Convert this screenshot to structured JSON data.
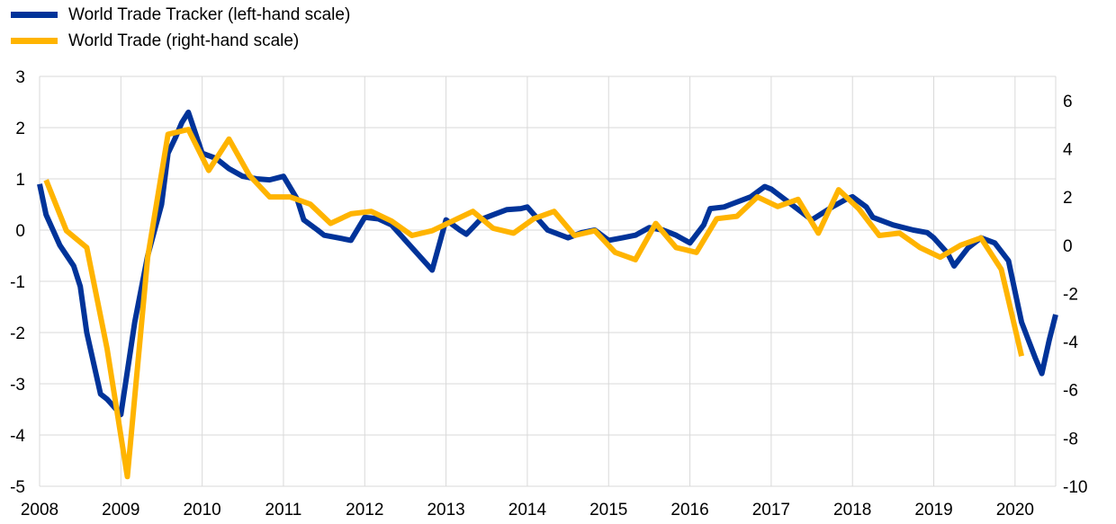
{
  "chart_data": {
    "type": "line",
    "title": "",
    "xlabel": "",
    "ylabel": "",
    "x_ticks": [
      "2008",
      "2009",
      "2010",
      "2011",
      "2012",
      "2013",
      "2014",
      "2015",
      "2016",
      "2017",
      "2018",
      "2019",
      "2020"
    ],
    "x_range": [
      2008.0,
      2020.5
    ],
    "y_left": {
      "range": [
        -5,
        3
      ],
      "ticks": [
        "3",
        "2",
        "1",
        "0",
        "-1",
        "-2",
        "-3",
        "-4",
        "-5"
      ]
    },
    "y_right": {
      "range": [
        -10,
        7
      ],
      "ticks": [
        "6",
        "4",
        "2",
        "0",
        "-2",
        "-4",
        "-6",
        "-8",
        "-10"
      ]
    },
    "grid": true,
    "legend_position": "top-left",
    "series": [
      {
        "name": "World Trade Tracker (left-hand scale)",
        "axis": "left",
        "color": "#003399",
        "points": [
          [
            2008.0,
            0.9
          ],
          [
            2008.08,
            0.3
          ],
          [
            2008.25,
            -0.3
          ],
          [
            2008.42,
            -0.7
          ],
          [
            2008.5,
            -1.1
          ],
          [
            2008.58,
            -2.0
          ],
          [
            2008.75,
            -3.2
          ],
          [
            2008.83,
            -3.3
          ],
          [
            2009.0,
            -3.6
          ],
          [
            2009.17,
            -1.8
          ],
          [
            2009.33,
            -0.5
          ],
          [
            2009.5,
            0.5
          ],
          [
            2009.58,
            1.5
          ],
          [
            2009.67,
            1.8
          ],
          [
            2009.75,
            2.1
          ],
          [
            2009.83,
            2.3
          ],
          [
            2010.0,
            1.5
          ],
          [
            2010.17,
            1.4
          ],
          [
            2010.33,
            1.2
          ],
          [
            2010.5,
            1.05
          ],
          [
            2010.67,
            1.0
          ],
          [
            2010.83,
            0.98
          ],
          [
            2011.0,
            1.05
          ],
          [
            2011.17,
            0.6
          ],
          [
            2011.25,
            0.2
          ],
          [
            2011.42,
            0.0
          ],
          [
            2011.5,
            -0.1
          ],
          [
            2011.67,
            -0.15
          ],
          [
            2011.83,
            -0.2
          ],
          [
            2012.0,
            0.25
          ],
          [
            2012.17,
            0.22
          ],
          [
            2012.33,
            0.1
          ],
          [
            2012.5,
            -0.2
          ],
          [
            2012.67,
            -0.5
          ],
          [
            2012.83,
            -0.78
          ],
          [
            2013.0,
            0.2
          ],
          [
            2013.17,
            0.0
          ],
          [
            2013.25,
            -0.08
          ],
          [
            2013.42,
            0.2
          ],
          [
            2013.58,
            0.3
          ],
          [
            2013.75,
            0.4
          ],
          [
            2013.92,
            0.42
          ],
          [
            2014.0,
            0.45
          ],
          [
            2014.25,
            0.0
          ],
          [
            2014.5,
            -0.15
          ],
          [
            2014.67,
            -0.05
          ],
          [
            2014.83,
            0.0
          ],
          [
            2015.0,
            -0.2
          ],
          [
            2015.17,
            -0.15
          ],
          [
            2015.33,
            -0.1
          ],
          [
            2015.5,
            0.05
          ],
          [
            2015.67,
            0.0
          ],
          [
            2015.83,
            -0.1
          ],
          [
            2016.0,
            -0.25
          ],
          [
            2016.17,
            0.1
          ],
          [
            2016.25,
            0.42
          ],
          [
            2016.42,
            0.45
          ],
          [
            2016.5,
            0.5
          ],
          [
            2016.75,
            0.65
          ],
          [
            2016.92,
            0.85
          ],
          [
            2017.0,
            0.8
          ],
          [
            2017.25,
            0.5
          ],
          [
            2017.5,
            0.2
          ],
          [
            2017.75,
            0.45
          ],
          [
            2017.92,
            0.6
          ],
          [
            2018.0,
            0.65
          ],
          [
            2018.17,
            0.45
          ],
          [
            2018.25,
            0.25
          ],
          [
            2018.5,
            0.1
          ],
          [
            2018.75,
            0.0
          ],
          [
            2018.92,
            -0.05
          ],
          [
            2019.0,
            -0.15
          ],
          [
            2019.17,
            -0.45
          ],
          [
            2019.25,
            -0.7
          ],
          [
            2019.42,
            -0.35
          ],
          [
            2019.58,
            -0.15
          ],
          [
            2019.75,
            -0.25
          ],
          [
            2019.92,
            -0.6
          ],
          [
            2020.0,
            -1.2
          ],
          [
            2020.08,
            -1.8
          ],
          [
            2020.25,
            -2.5
          ],
          [
            2020.33,
            -2.8
          ],
          [
            2020.42,
            -2.15
          ],
          [
            2020.5,
            -1.65
          ]
        ]
      },
      {
        "name": "World Trade (right-hand scale)",
        "axis": "right",
        "color": "#ffb400",
        "points": [
          [
            2008.08,
            2.7
          ],
          [
            2008.33,
            0.6
          ],
          [
            2008.58,
            -0.1
          ],
          [
            2008.83,
            -4.3
          ],
          [
            2009.08,
            -9.6
          ],
          [
            2009.33,
            -0.5
          ],
          [
            2009.58,
            4.6
          ],
          [
            2009.83,
            4.8
          ],
          [
            2010.08,
            3.1
          ],
          [
            2010.33,
            4.4
          ],
          [
            2010.58,
            2.9
          ],
          [
            2010.83,
            2.0
          ],
          [
            2011.08,
            2.0
          ],
          [
            2011.33,
            1.7
          ],
          [
            2011.58,
            0.9
          ],
          [
            2011.83,
            1.3
          ],
          [
            2012.08,
            1.4
          ],
          [
            2012.33,
            1.0
          ],
          [
            2012.58,
            0.4
          ],
          [
            2012.83,
            0.6
          ],
          [
            2013.08,
            1.0
          ],
          [
            2013.33,
            1.4
          ],
          [
            2013.58,
            0.7
          ],
          [
            2013.83,
            0.5
          ],
          [
            2014.08,
            1.1
          ],
          [
            2014.33,
            1.4
          ],
          [
            2014.58,
            0.4
          ],
          [
            2014.83,
            0.6
          ],
          [
            2015.08,
            -0.3
          ],
          [
            2015.33,
            -0.6
          ],
          [
            2015.58,
            0.9
          ],
          [
            2015.83,
            -0.1
          ],
          [
            2016.08,
            -0.3
          ],
          [
            2016.33,
            1.1
          ],
          [
            2016.58,
            1.2
          ],
          [
            2016.83,
            2.0
          ],
          [
            2017.08,
            1.6
          ],
          [
            2017.33,
            1.9
          ],
          [
            2017.58,
            0.5
          ],
          [
            2017.83,
            2.3
          ],
          [
            2018.08,
            1.5
          ],
          [
            2018.33,
            0.4
          ],
          [
            2018.58,
            0.5
          ],
          [
            2018.83,
            -0.1
          ],
          [
            2019.08,
            -0.5
          ],
          [
            2019.33,
            0.0
          ],
          [
            2019.58,
            0.3
          ],
          [
            2019.83,
            -1.0
          ],
          [
            2020.08,
            -4.6
          ]
        ]
      }
    ]
  }
}
